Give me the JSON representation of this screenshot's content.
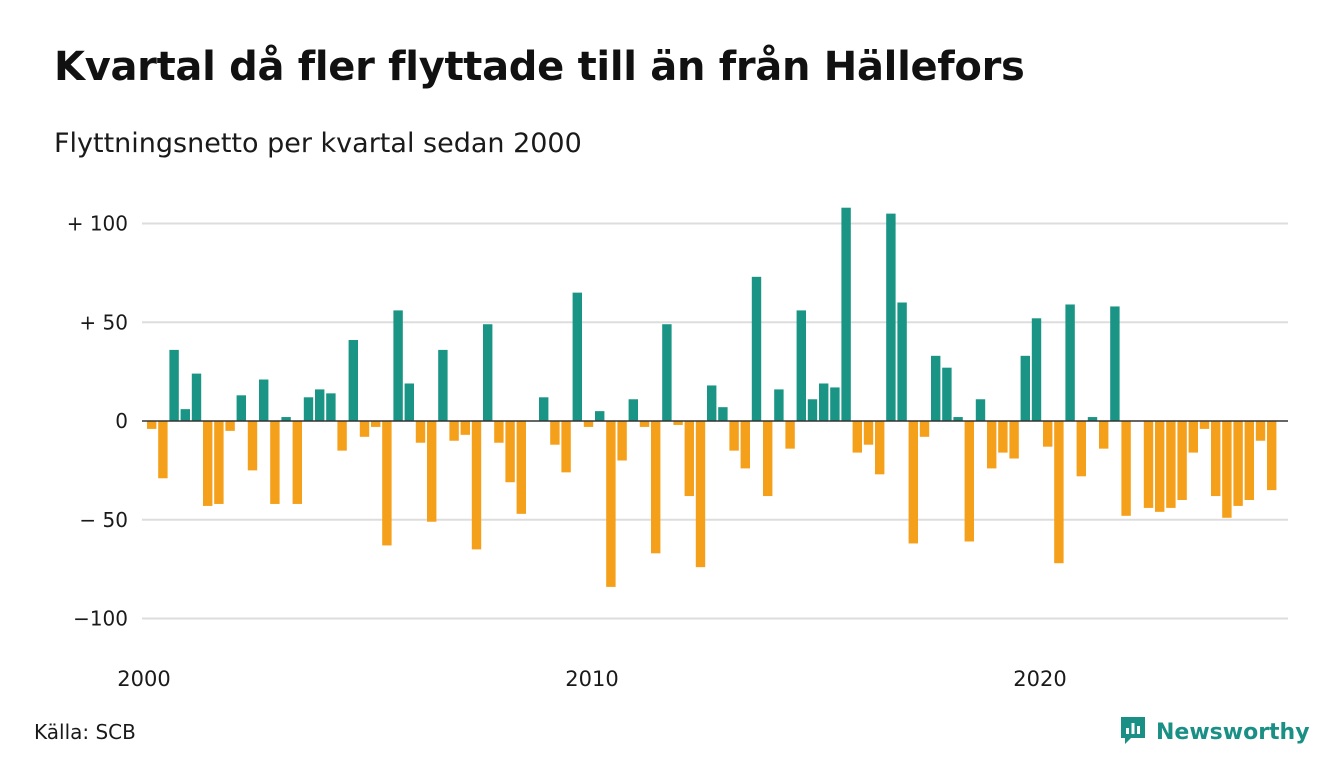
{
  "header": {
    "title": "Kvartal då fler flyttade till än från Hällefors",
    "subtitle": "Flyttningsnetto per kvartal sedan 2000"
  },
  "footer": {
    "source": "Källa: SCB",
    "brand": "Newsworthy"
  },
  "colors": {
    "positive": "#1a9484",
    "negative": "#f5a01a",
    "grid": "#dddddd",
    "axis": "#333333",
    "brand": "#1a8f86"
  },
  "icons": {
    "brand_logo": "bar-chart-speech-bubble-icon"
  },
  "chart_data": {
    "type": "bar",
    "ylim": [
      -110,
      110
    ],
    "yticks": [
      {
        "value": 100,
        "label": "+ 100"
      },
      {
        "value": 50,
        "label": "+  50"
      },
      {
        "value": 0,
        "label": "0"
      },
      {
        "value": -50,
        "label": "− 50"
      },
      {
        "value": -100,
        "label": "−100"
      }
    ],
    "xticks": [
      {
        "index": 0,
        "label": "2000"
      },
      {
        "index": 40,
        "label": "2010"
      },
      {
        "index": 80,
        "label": "2020"
      }
    ],
    "grid": true,
    "start": "2000 Q1",
    "values": [
      -4,
      -29,
      36,
      6,
      24,
      -43,
      -42,
      -5,
      13,
      -25,
      21,
      -42,
      2,
      -42,
      12,
      16,
      14,
      -15,
      41,
      -8,
      -3,
      -63,
      56,
      19,
      -11,
      -51,
      36,
      -10,
      -7,
      -65,
      49,
      -11,
      -31,
      -47,
      0,
      12,
      -12,
      -26,
      65,
      -3,
      5,
      -84,
      -20,
      11,
      -3,
      -67,
      49,
      -2,
      -38,
      -74,
      18,
      7,
      -15,
      -24,
      73,
      -38,
      16,
      -14,
      56,
      11,
      19,
      17,
      108,
      -16,
      -12,
      -27,
      105,
      60,
      -62,
      -8,
      33,
      27,
      2,
      -61,
      11,
      -24,
      -16,
      -19,
      33,
      52,
      -13,
      -72,
      59,
      -28,
      2,
      -14,
      58,
      -48,
      0,
      -44,
      -46,
      -44,
      -40,
      -16,
      -4,
      -38,
      -49,
      -43,
      -40,
      -10,
      -35
    ]
  }
}
